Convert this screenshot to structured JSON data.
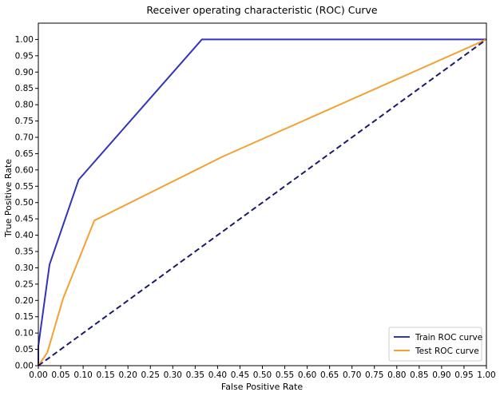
{
  "chart_data": {
    "type": "line",
    "title": "Receiver operating characteristic (ROC) Curve",
    "xlabel": "False Positive Rate",
    "ylabel": "True Positive Rate",
    "xlim": [
      0,
      1
    ],
    "ylim": [
      0,
      1.05
    ],
    "xticks": [
      "0.00",
      "0.05",
      "0.10",
      "0.15",
      "0.20",
      "0.25",
      "0.30",
      "0.35",
      "0.40",
      "0.45",
      "0.50",
      "0.55",
      "0.60",
      "0.65",
      "0.70",
      "0.75",
      "0.80",
      "0.85",
      "0.90",
      "0.95",
      "1.00"
    ],
    "yticks": [
      "0.00",
      "0.05",
      "0.10",
      "0.15",
      "0.20",
      "0.25",
      "0.30",
      "0.35",
      "0.40",
      "0.45",
      "0.50",
      "0.55",
      "0.60",
      "0.65",
      "0.70",
      "0.75",
      "0.80",
      "0.85",
      "0.90",
      "0.95",
      "1.00"
    ],
    "grid": false,
    "legend_position": "lower-right",
    "series": [
      {
        "name": "Train ROC curve",
        "color": "#3333bb",
        "style": "solid",
        "x": [
          0.0,
          0.0,
          0.025,
          0.09,
          0.365,
          1.0
        ],
        "y": [
          0.0,
          0.06,
          0.31,
          0.57,
          1.0,
          1.0
        ]
      },
      {
        "name": "Test ROC curve",
        "color": "#f5a033",
        "style": "solid",
        "x": [
          0.0,
          0.02,
          0.055,
          0.125,
          0.41,
          1.0
        ],
        "y": [
          0.0,
          0.04,
          0.205,
          0.445,
          0.64,
          1.0
        ]
      },
      {
        "color": "#1a1a6b",
        "style": "dashed",
        "x": [
          0.0,
          1.0
        ],
        "y": [
          0.0,
          1.0
        ]
      }
    ]
  }
}
